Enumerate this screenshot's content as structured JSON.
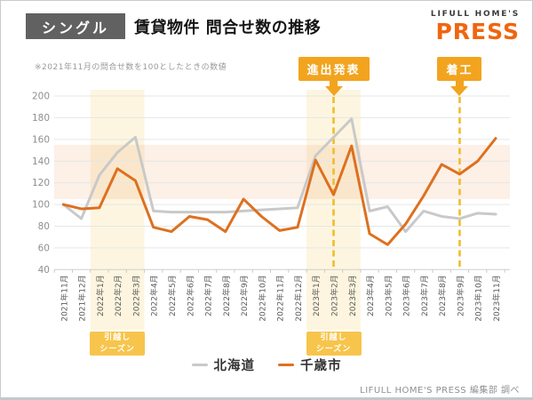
{
  "header": {
    "badge": "シングル",
    "title": "賃貸物件 問合せ数の推移"
  },
  "logo": {
    "line1": "LIFULL HOME'S",
    "line2": "PRESS"
  },
  "note": "※2021年11月の問合せ数を100としたときの数値",
  "annotations": {
    "flags": [
      {
        "label": "進出発表",
        "category": "2023年2月"
      },
      {
        "label": "着工",
        "category": "2023年9月"
      }
    ],
    "season_label": [
      "引越し",
      "シーズン"
    ],
    "season_bands": [
      {
        "from": "2022年1月",
        "to": "2022年3月"
      },
      {
        "from": "2023年1月",
        "to": "2023年3月"
      }
    ],
    "highlight_value_range": [
      105,
      155
    ]
  },
  "legend": [
    {
      "label": "北海道",
      "color": "#C9C9C9"
    },
    {
      "label": "千歳市",
      "color": "#DE701F"
    }
  ],
  "footer": {
    "source": "LIFULL HOME'S PRESS 編集部 調べ"
  },
  "colors": {
    "badge_bg": "#616161",
    "press_orange": "#F0650F",
    "flag": "#F2A41E",
    "dashed_line": "#EFBD2B",
    "season_box": "#F7C54C",
    "season_band": "#F6C54E",
    "value_band": "#EB8C46",
    "grid": "#E6E6E6",
    "axis": "#CFCFCF"
  },
  "chart_data": {
    "type": "line",
    "title": "賃貸物件 問合せ数の推移(シングル)",
    "xlabel": "",
    "ylabel": "",
    "ylim": [
      40,
      200
    ],
    "ytick_step": 20,
    "grid": true,
    "legend_position": "bottom",
    "categories": [
      "2021年11月",
      "2021年12月",
      "2022年1月",
      "2022年2月",
      "2022年3月",
      "2022年4月",
      "2022年5月",
      "2022年6月",
      "2022年7月",
      "2022年8月",
      "2022年9月",
      "2022年10月",
      "2022年11月",
      "2022年12月",
      "2023年1月",
      "2023年2月",
      "2023年3月",
      "2023年4月",
      "2023年5月",
      "2023年6月",
      "2023年7月",
      "2023年8月",
      "2023年9月",
      "2023年10月",
      "2023年11月"
    ],
    "series": [
      {
        "name": "北海道",
        "color": "#C9C9C9",
        "values": [
          100,
          87,
          127,
          148,
          162,
          94,
          93,
          93,
          93,
          93,
          94,
          95,
          96,
          97,
          145,
          162,
          179,
          94,
          98,
          75,
          94,
          89,
          87,
          92,
          91
        ]
      },
      {
        "name": "千歳市",
        "color": "#DE701F",
        "values": [
          100,
          96,
          97,
          133,
          122,
          79,
          75,
          89,
          86,
          75,
          105,
          89,
          76,
          79,
          141,
          109,
          154,
          73,
          63,
          82,
          108,
          137,
          128,
          140,
          161
        ]
      }
    ]
  }
}
